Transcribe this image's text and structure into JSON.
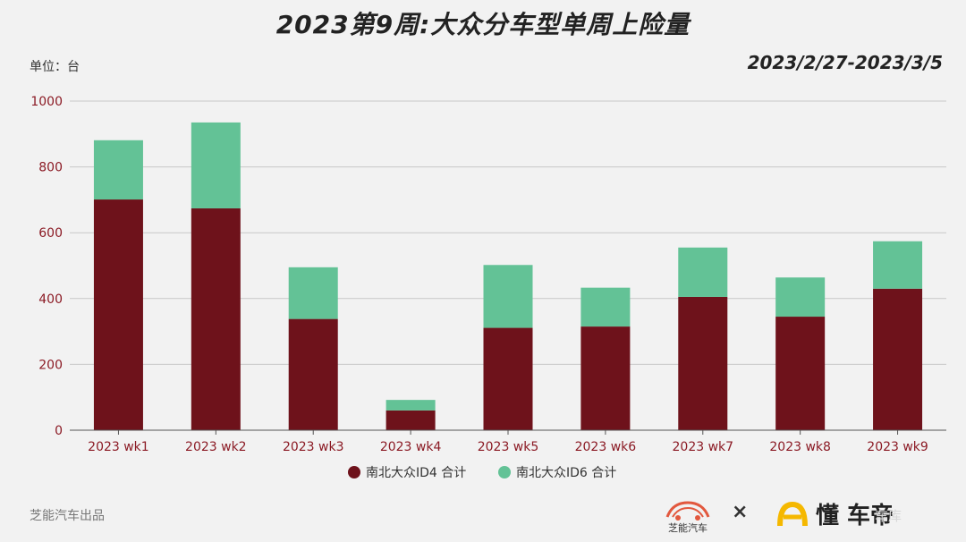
{
  "header": {
    "title": "2023第9周:大众分车型单周上险量",
    "unit": "单位：台",
    "date_range": "2023/2/27-2023/3/5"
  },
  "footer": {
    "source": "芝能汽车出品",
    "logo1_label": "芝能汽车",
    "cross": "×",
    "logo2_label": "懂 车帝",
    "watermark": "车库"
  },
  "colors": {
    "id4": "#6e121b",
    "id6": "#63c296",
    "grid": "#c8c8c8",
    "tick": "#8b1a24"
  },
  "chart_data": {
    "type": "bar",
    "stacked": true,
    "categories": [
      "2023 wk1",
      "2023 wk2",
      "2023 wk3",
      "2023 wk4",
      "2023 wk5",
      "2023 wk6",
      "2023 wk7",
      "2023 wk8",
      "2023 wk9"
    ],
    "series": [
      {
        "name": "南北大众ID4 合计",
        "values": [
          701,
          674,
          338,
          60,
          311,
          315,
          405,
          345,
          430
        ],
        "color": "#6e121b"
      },
      {
        "name": "南北大众ID6 合计",
        "values": [
          180,
          261,
          157,
          32,
          191,
          118,
          150,
          119,
          144
        ],
        "color": "#63c296"
      }
    ],
    "yticks": [
      0,
      200,
      400,
      600,
      800,
      1000
    ],
    "ylim": [
      0,
      1000
    ],
    "grid": true,
    "legend": "bottom"
  }
}
